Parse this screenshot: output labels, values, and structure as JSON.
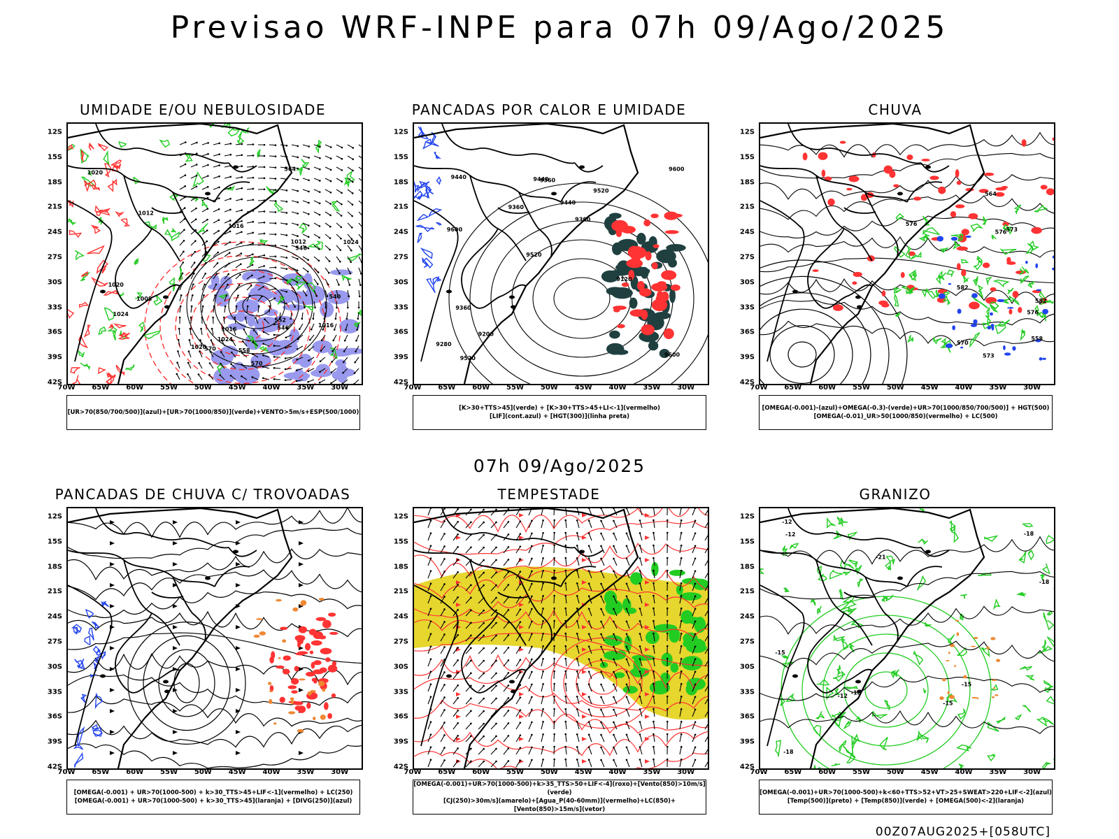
{
  "header": {
    "title": "Previsao WRF-INPE  para 07h 09/Ago/2025"
  },
  "mid_title": "07h 09/Ago/2025",
  "footer": "00Z07AUG2025+[058UTC]",
  "axes": {
    "lat_labels": [
      "12S",
      "15S",
      "18S",
      "21S",
      "24S",
      "27S",
      "30S",
      "33S",
      "36S",
      "39S",
      "42S"
    ],
    "lon_labels": [
      "70W",
      "65W",
      "60W",
      "55W",
      "50W",
      "45W",
      "40W",
      "35W",
      "30W"
    ]
  },
  "colors": {
    "green": "#22cc22",
    "red": "#ff3333",
    "blue": "#2244ee",
    "orange": "#ee8833",
    "yellow": "#e6d62e",
    "lavender": "#9999ee",
    "darkteal": "#204040",
    "black": "#000000"
  },
  "panels": [
    {
      "title": "UMIDADE E/OU NEBULOSIDADE",
      "legend": [
        "[UR>70(850/700/500)](azul)+[UR>70(1000/850)](verde)+VENTO>5m/s+ESP(500/1000)"
      ],
      "contour_labels": [
        "1020",
        "1016",
        "1016",
        "1020",
        "1024",
        "1024",
        "1024",
        "1020",
        "1012",
        "1012",
        "1008",
        "1016",
        "570",
        "570",
        "564",
        "558",
        "552",
        "546",
        "540",
        "546"
      ]
    },
    {
      "title": "PANCADAS POR CALOR E UMIDADE",
      "legend": [
        "[K>30+TTS>45](verde) + [K>30+TTS>45+LI<-1](vermelho)",
        "[LIF](cont.azul) + [HGT(300)](linha preta)"
      ],
      "contour_labels": [
        "9600",
        "9600",
        "9600",
        "9520",
        "9520",
        "9520",
        "9440",
        "9440",
        "9360",
        "9360",
        "9280",
        "9200",
        "9360",
        "9360",
        "9120",
        "9440"
      ]
    },
    {
      "title": "CHUVA",
      "legend": [
        "[OMEGA(-0.001)-(azul)+OMEGA(-0.3)-(verde)+UR>70(1000/850/700/500)] + HGT(500)",
        "[OMEGA(-0.01)_UR>50(1000/850)(vermelho) + LC(500)"
      ],
      "contour_labels": [
        "582",
        "582",
        "576",
        "576",
        "570",
        "564",
        "573",
        "576",
        "558",
        "573"
      ]
    },
    {
      "title": "PANCADAS DE CHUVA C/ TROVOADAS",
      "legend": [
        "[OMEGA(-0.001) + UR>70(1000-500) + k>30_TTS>45+LIF<-1](vermelho) + LC(250)",
        "[OMEGA(-0.001) + UR>70(1000-500) + k>30_TTS>45](laranja) + [DIVG(250)](azul)"
      ],
      "contour_labels": []
    },
    {
      "title": "TEMPESTADE",
      "legend": [
        "[OMEGA(-0.001)+UR>70(1000-500)+k>35_TTS>50+LIF<-4](roxo)+[Vento(850)>10m/s](verde)",
        "[CJ(250)>30m/s](amarelo)+[Agua_P(40-60mm)](vermelho)+LC(850)+[Vento(850)>15m/s](vetor)"
      ],
      "contour_labels": []
    },
    {
      "title": "GRANIZO",
      "legend": [
        "[OMEGA(-0.001)+UR>70(1000-500)+k<60+TTS>52+VT>25+SWEAT>220+LIF<-2](azul)",
        "[Temp(500)](preto) + [Temp(850)](verde) + [OMEGA(500)<-2](laranja)"
      ],
      "contour_labels": [
        "-12",
        "-12",
        "-15",
        "-18",
        "-18",
        "-15",
        "-21",
        "-18",
        "-18",
        "-15",
        "-12"
      ]
    }
  ]
}
